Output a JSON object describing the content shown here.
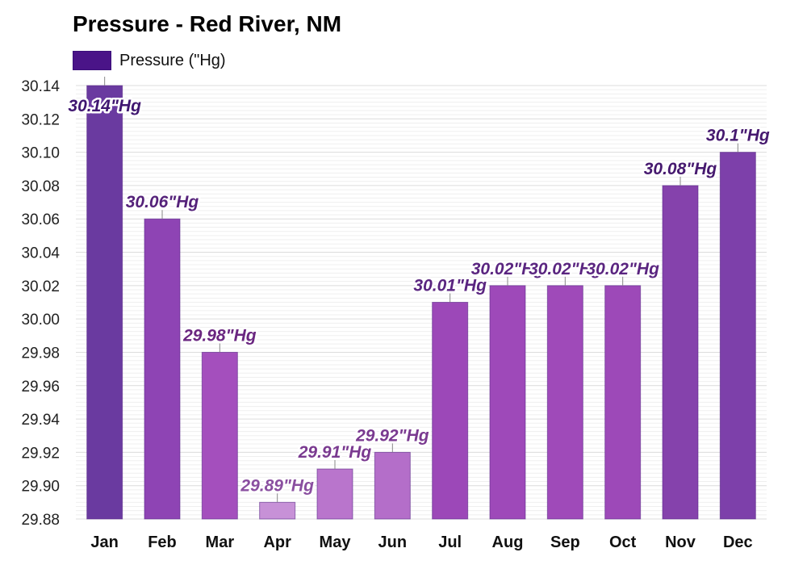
{
  "title": "Pressure - Red River, NM",
  "legend": {
    "label": "Pressure (\"Hg)",
    "color": "#4a1488"
  },
  "chart_data": {
    "type": "bar",
    "title": "Pressure - Red River, NM",
    "xlabel": "",
    "ylabel": "",
    "categories": [
      "Jan",
      "Feb",
      "Mar",
      "Apr",
      "May",
      "Jun",
      "Jul",
      "Aug",
      "Sep",
      "Oct",
      "Nov",
      "Dec"
    ],
    "series": [
      {
        "name": "Pressure (\"Hg)",
        "values": [
          30.14,
          30.06,
          29.98,
          29.89,
          29.91,
          29.92,
          30.01,
          30.02,
          30.02,
          30.02,
          30.08,
          30.1
        ],
        "labels": [
          "30.14\"Hg",
          "30.06\"Hg",
          "29.98\"Hg",
          "29.89\"Hg",
          "29.91\"Hg",
          "29.92\"Hg",
          "30.01\"Hg",
          "30.02\"Hg",
          "30.02\"Hg",
          "30.02\"Hg",
          "30.08\"Hg",
          "30.1\"Hg"
        ]
      }
    ],
    "ylim": [
      29.88,
      30.14
    ],
    "yticks": [
      "30.14",
      "30.12",
      "30.10",
      "30.08",
      "30.06",
      "30.04",
      "30.02",
      "30.00",
      "29.98",
      "29.96",
      "29.94",
      "29.92",
      "29.90",
      "29.88"
    ],
    "grid": true,
    "legend_position": "top-left",
    "colors": {
      "bars": [
        "#6a3aa0",
        "#8e44b4",
        "#a44fbd",
        "#c791d7",
        "#b975cc",
        "#b46ec9",
        "#9c48b8",
        "#9e49b9",
        "#9f4ab9",
        "#9d49b8",
        "#8542ac",
        "#7d40aa"
      ],
      "labels": [
        "#3f1670",
        "#55227a",
        "#6a2680",
        "#8a4fa0",
        "#7a3a90",
        "#7a3a90",
        "#5a2580",
        "#5a2580",
        "#5a2580",
        "#5a2580",
        "#46196f",
        "#46196f"
      ],
      "grid": "#e3e3e3"
    }
  }
}
